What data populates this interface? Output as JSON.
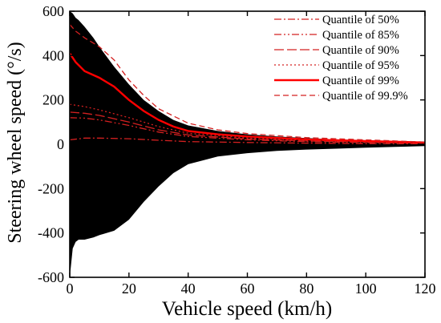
{
  "chart_data": {
    "type": "scatter",
    "title": "",
    "xlabel": "Vehicle speed (km/h)",
    "ylabel": "Steering wheel speed (°/s)",
    "xlim": [
      0,
      120
    ],
    "ylim": [
      -600,
      600
    ],
    "x_ticks": [
      0,
      20,
      40,
      60,
      80,
      100,
      120
    ],
    "y_ticks": [
      -600,
      -400,
      -200,
      0,
      200,
      400,
      600
    ],
    "x_tick_labels": [
      "0",
      "20",
      "40",
      "60",
      "80",
      "100",
      "120"
    ],
    "y_tick_labels": [
      "-600",
      "-400",
      "-200",
      "0",
      "200",
      "400",
      "600"
    ],
    "grid": false,
    "legend_position": "top-right",
    "scatter_envelope": {
      "color": "#000000",
      "x": [
        0,
        1,
        2,
        3,
        5,
        8,
        10,
        15,
        20,
        25,
        30,
        35,
        40,
        50,
        60,
        70,
        80,
        90,
        100,
        110,
        120
      ],
      "upper": [
        600,
        590,
        570,
        560,
        530,
        480,
        440,
        350,
        270,
        200,
        150,
        110,
        85,
        60,
        45,
        35,
        28,
        22,
        18,
        14,
        10
      ],
      "lower": [
        -600,
        -470,
        -440,
        -430,
        -430,
        -420,
        -410,
        -390,
        -340,
        -260,
        -190,
        -130,
        -90,
        -55,
        -40,
        -30,
        -24,
        -20,
        -15,
        -12,
        -8
      ]
    },
    "series": [
      {
        "name": "Quantile of 50%",
        "color": "#d42020",
        "dash": "dashdot",
        "x": [
          0,
          5,
          10,
          20,
          30,
          40,
          60,
          80,
          100,
          120
        ],
        "y": [
          20,
          28,
          28,
          25,
          18,
          12,
          8,
          5,
          3,
          2
        ]
      },
      {
        "name": "Quantile of 85%",
        "color": "#d42020",
        "dash": "dashdotdot",
        "x": [
          0,
          5,
          10,
          20,
          30,
          40,
          60,
          80,
          100,
          120
        ],
        "y": [
          120,
          118,
          110,
          85,
          55,
          35,
          20,
          12,
          8,
          5
        ]
      },
      {
        "name": "Quantile of 90%",
        "color": "#d42020",
        "dash": "longdash",
        "x": [
          0,
          5,
          10,
          20,
          30,
          40,
          60,
          80,
          100,
          120
        ],
        "y": [
          145,
          140,
          130,
          100,
          65,
          42,
          24,
          15,
          10,
          6
        ]
      },
      {
        "name": "Quantile of 95%",
        "color": "#d42020",
        "dash": "dotted",
        "x": [
          0,
          5,
          10,
          20,
          30,
          40,
          60,
          80,
          100,
          120
        ],
        "y": [
          180,
          170,
          155,
          120,
          80,
          50,
          28,
          18,
          12,
          7
        ]
      },
      {
        "name": "Quantile of 99%",
        "color": "#ff0000",
        "dash": "solid",
        "x": [
          0,
          2,
          5,
          10,
          15,
          20,
          25,
          30,
          35,
          40,
          50,
          60,
          80,
          100,
          120
        ],
        "y": [
          410,
          370,
          330,
          300,
          260,
          200,
          150,
          110,
          80,
          60,
          45,
          35,
          22,
          15,
          8
        ]
      },
      {
        "name": "Quantile of 99.9%",
        "color": "#d42020",
        "dash": "dashed",
        "x": [
          0,
          2,
          5,
          10,
          15,
          20,
          25,
          30,
          40,
          50,
          60,
          80,
          100,
          120
        ],
        "y": [
          540,
          510,
          480,
          440,
          380,
          290,
          220,
          160,
          95,
          65,
          48,
          30,
          20,
          10
        ]
      }
    ]
  }
}
